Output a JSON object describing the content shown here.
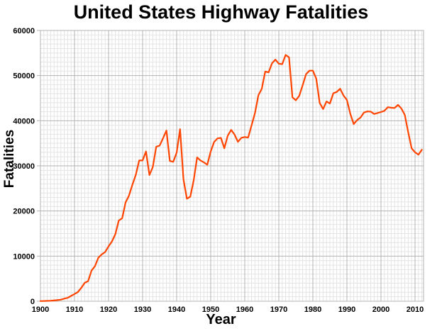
{
  "chart_data": {
    "type": "line",
    "title": "United States Highway Fatalities",
    "xlabel": "Year",
    "ylabel": "Fatalities",
    "xlim": [
      1900,
      2012.5
    ],
    "ylim": [
      0,
      60000
    ],
    "xticks": [
      1900,
      1910,
      1920,
      1930,
      1940,
      1950,
      1960,
      1970,
      1980,
      1990,
      2000,
      2010
    ],
    "yticks": [
      0,
      10000,
      20000,
      30000,
      40000,
      50000,
      60000
    ],
    "grid": {
      "visible": true,
      "minor_x_step": 1,
      "minor_y_step": 1000,
      "major_x_step": 10,
      "major_y_step": 10000
    },
    "legend": "none",
    "colors": {
      "line": "#FF4500",
      "grid_minor": "#e4e4e4",
      "grid_major": "#b3b3b3",
      "text": "#000000",
      "background": "#ffffff"
    },
    "series": [
      {
        "name": "fatalities",
        "color": "#FF4500",
        "x": [
          1900,
          1901,
          1902,
          1903,
          1904,
          1905,
          1906,
          1907,
          1908,
          1909,
          1910,
          1911,
          1912,
          1913,
          1914,
          1915,
          1916,
          1917,
          1918,
          1919,
          1920,
          1921,
          1922,
          1923,
          1924,
          1925,
          1926,
          1927,
          1928,
          1929,
          1930,
          1931,
          1932,
          1933,
          1934,
          1935,
          1936,
          1937,
          1938,
          1939,
          1940,
          1941,
          1942,
          1943,
          1944,
          1945,
          1946,
          1947,
          1948,
          1949,
          1950,
          1951,
          1952,
          1953,
          1954,
          1955,
          1956,
          1957,
          1958,
          1959,
          1960,
          1961,
          1962,
          1963,
          1964,
          1965,
          1966,
          1967,
          1968,
          1969,
          1970,
          1971,
          1972,
          1973,
          1974,
          1975,
          1976,
          1977,
          1978,
          1979,
          1980,
          1981,
          1982,
          1983,
          1984,
          1985,
          1986,
          1987,
          1988,
          1989,
          1990,
          1991,
          1992,
          1993,
          1994,
          1995,
          1996,
          1997,
          1998,
          1999,
          2000,
          2001,
          2002,
          2003,
          2004,
          2005,
          2006,
          2007,
          2008,
          2009,
          2010,
          2011,
          2012
        ],
        "values": [
          36,
          54,
          79,
          117,
          172,
          252,
          338,
          581,
          751,
          1174,
          1599,
          2043,
          2968,
          4079,
          4468,
          6779,
          7766,
          9630,
          10390,
          10896,
          12155,
          13253,
          14859,
          17870,
          18400,
          21900,
          23400,
          25800,
          28000,
          31200,
          31204,
          33190,
          27979,
          29746,
          34240,
          34494,
          36126,
          37819,
          31083,
          30895,
          32914,
          38142,
          27007,
          22727,
          23165,
          26785,
          31874,
          31193,
          30775,
          30246,
          33186,
          35309,
          36088,
          36190,
          33890,
          36688,
          37965,
          36932,
          35331,
          36223,
          36399,
          36285,
          38980,
          41723,
          45645,
          47089,
          50894,
          50724,
          52725,
          53543,
          52627,
          52542,
          54589,
          54052,
          45196,
          44525,
          45523,
          47878,
          50331,
          51093,
          51091,
          49301,
          43945,
          42589,
          44257,
          43825,
          46087,
          46390,
          47087,
          45582,
          44599,
          41508,
          39250,
          40150,
          40716,
          41817,
          42065,
          42013,
          41501,
          41717,
          41945,
          42196,
          43005,
          42884,
          42836,
          43510,
          42708,
          41259,
          37423,
          33883,
          32999,
          32479,
          33561
        ]
      }
    ]
  }
}
